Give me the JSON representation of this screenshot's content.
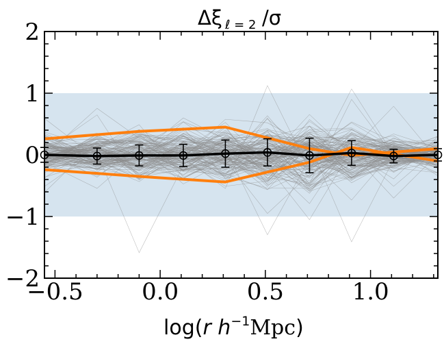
{
  "chart_data": {
    "type": "line",
    "title": {
      "main": "Δξ",
      "subscript": "ℓ = 2",
      "tail": "/σ"
    },
    "xlabel": {
      "prefix": "log(",
      "var": "r h",
      "sup": "−1",
      "unit": "Mpc",
      "suffix": ")"
    },
    "ylabel": "",
    "xlim": [
      -0.55,
      1.32
    ],
    "ylim": [
      -2,
      2
    ],
    "x_ticks": [
      -0.5,
      0.0,
      0.5,
      1.0
    ],
    "x_tick_labels": [
      "−0.5",
      "0.0",
      "0.5",
      "1.0"
    ],
    "y_ticks": [
      -2,
      -1,
      0,
      1,
      2
    ],
    "y_tick_labels": [
      "−2",
      "−1",
      "0",
      "1",
      "2"
    ],
    "band": {
      "y0": -1,
      "y1": 1,
      "color": "#d6e4ef"
    },
    "x": [
      -0.55,
      -0.3,
      -0.1,
      0.11,
      0.31,
      0.51,
      0.71,
      0.91,
      1.11,
      1.32
    ],
    "series": [
      {
        "role": "mean",
        "color": "#000000",
        "x": [
          -0.55,
          -0.3,
          -0.1,
          0.11,
          0.31,
          0.51,
          0.71,
          0.91,
          1.11,
          1.32
        ],
        "values": [
          0.0,
          -0.02,
          -0.01,
          -0.01,
          0.02,
          0.04,
          -0.01,
          0.03,
          -0.02,
          0.0
        ],
        "errors": [
          0.12,
          0.13,
          0.17,
          0.18,
          0.22,
          0.22,
          0.28,
          0.2,
          0.11,
          0.1
        ]
      },
      {
        "role": "upper-envelope",
        "color": "#ff7f0e",
        "x": [
          -0.55,
          -0.1,
          0.31,
          0.71,
          0.91,
          1.32
        ],
        "values": [
          0.26,
          0.38,
          0.45,
          0.1,
          -0.01,
          0.1
        ]
      },
      {
        "role": "lower-envelope",
        "color": "#ff7f0e",
        "x": [
          -0.55,
          -0.1,
          0.31,
          0.71,
          0.91,
          1.32
        ],
        "values": [
          -0.24,
          -0.35,
          -0.44,
          -0.12,
          0.12,
          -0.1
        ]
      }
    ],
    "realizations": {
      "count": 150,
      "color": "#8c8c8c",
      "typical_sigma": [
        0.18,
        0.17,
        0.2,
        0.2,
        0.22,
        0.24,
        0.28,
        0.22,
        0.13,
        0.12
      ]
    },
    "grid": false,
    "legend": "none"
  }
}
